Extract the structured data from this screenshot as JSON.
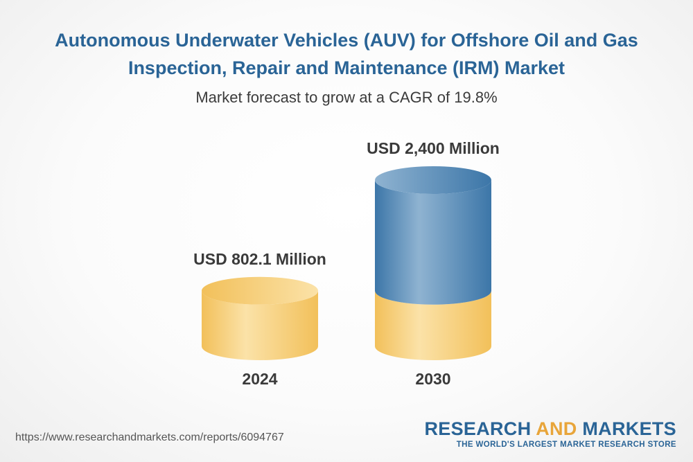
{
  "chart_data": {
    "type": "bar",
    "title_line1": "Autonomous Underwater Vehicles (AUV) for Offshore Oil and Gas",
    "title_line2": "Inspection, Repair and Maintenance (IRM) Market",
    "subtitle": "Market forecast to grow at a CAGR of 19.8%",
    "categories": [
      "2024",
      "2030"
    ],
    "values": [
      802.1,
      2400
    ],
    "value_labels": [
      "USD 802.1 Million",
      "USD 2,400 Million"
    ],
    "unit": "USD Million",
    "xlabel": "",
    "ylabel": "",
    "grid": false,
    "colors": {
      "base": "#f2c05a",
      "base_light": "#fbe2a8",
      "growth": "#3c76a8",
      "growth_light": "#8fb3d1"
    }
  },
  "footer": {
    "url": "https://www.researchandmarkets.com/reports/6094767",
    "brand_part1": "RESEARCH ",
    "brand_part2": "AND",
    "brand_part3": " MARKETS",
    "brand_tagline": "THE WORLD'S LARGEST MARKET RESEARCH STORE"
  }
}
